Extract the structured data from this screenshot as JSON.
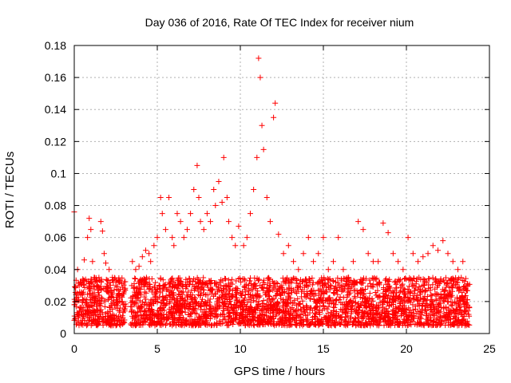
{
  "chart_data": {
    "type": "scatter",
    "title": "Day 036 of 2016, Rate Of TEC Index for receiver nium",
    "xlabel": "GPS time / hours",
    "ylabel": "ROTI / TECUs",
    "xlim": [
      0,
      25
    ],
    "ylim": [
      0,
      0.18
    ],
    "xticks": [
      0,
      5,
      10,
      15,
      20,
      25
    ],
    "yticks": [
      0,
      0.02,
      0.04,
      0.06,
      0.08,
      0.1,
      0.12,
      0.14,
      0.16,
      0.18
    ],
    "xtick_labels": [
      "0",
      "5",
      "10",
      "15",
      "20",
      "25"
    ],
    "ytick_labels": [
      "0",
      "0.02",
      "0.04",
      "0.06",
      "0.08",
      "0.1",
      "0.12",
      "0.14",
      "0.16",
      "0.18"
    ],
    "grid": true,
    "marker": "+",
    "color": "#ff0000",
    "series": [
      {
        "x": [
          0.0,
          0.05,
          0.2,
          0.3,
          0.5,
          0.6,
          0.8,
          0.9,
          1.0,
          1.1,
          1.2,
          1.4,
          1.6,
          1.7,
          1.8,
          1.9,
          2.1,
          2.3,
          2.5,
          2.7,
          2.9,
          3.0,
          3.5,
          3.7,
          3.9,
          4.1,
          4.3,
          4.5,
          4.6,
          4.8,
          5.0,
          5.2,
          5.3,
          5.5,
          5.7,
          5.9,
          6.0,
          6.2,
          6.4,
          6.6,
          6.8,
          7.0,
          7.2,
          7.4,
          7.5,
          7.6,
          7.8,
          8.0,
          8.2,
          8.4,
          8.5,
          8.7,
          8.9,
          9.0,
          9.2,
          9.3,
          9.5,
          9.7,
          9.9,
          10.2,
          10.4,
          10.6,
          10.8,
          11.0,
          11.1,
          11.2,
          11.3,
          11.4,
          11.6,
          11.8,
          12.0,
          12.1,
          12.3,
          12.6,
          12.9,
          13.2,
          13.5,
          13.8,
          14.1,
          14.4,
          14.7,
          15.0,
          15.3,
          15.6,
          15.9,
          16.2,
          16.5,
          16.8,
          17.1,
          17.4,
          17.7,
          18.0,
          18.3,
          18.6,
          18.9,
          19.2,
          19.5,
          19.8,
          20.1,
          20.4,
          20.7,
          21.0,
          21.3,
          21.6,
          21.9,
          22.2,
          22.5,
          22.8,
          23.1,
          23.4,
          23.7
        ],
        "y": [
          0.076,
          0.02,
          0.04,
          0.03,
          0.025,
          0.046,
          0.06,
          0.072,
          0.065,
          0.045,
          0.035,
          0.03,
          0.07,
          0.064,
          0.05,
          0.044,
          0.04,
          0.035,
          0.03,
          0.025,
          0.02,
          0.018,
          0.045,
          0.04,
          0.042,
          0.048,
          0.052,
          0.05,
          0.045,
          0.055,
          0.06,
          0.085,
          0.075,
          0.065,
          0.085,
          0.06,
          0.055,
          0.075,
          0.07,
          0.06,
          0.065,
          0.075,
          0.09,
          0.105,
          0.085,
          0.07,
          0.065,
          0.075,
          0.07,
          0.09,
          0.08,
          0.095,
          0.082,
          0.11,
          0.085,
          0.07,
          0.06,
          0.055,
          0.067,
          0.055,
          0.06,
          0.075,
          0.09,
          0.11,
          0.172,
          0.16,
          0.13,
          0.115,
          0.085,
          0.07,
          0.135,
          0.144,
          0.062,
          0.05,
          0.055,
          0.045,
          0.04,
          0.05,
          0.06,
          0.045,
          0.05,
          0.06,
          0.04,
          0.045,
          0.06,
          0.04,
          0.035,
          0.045,
          0.07,
          0.065,
          0.05,
          0.045,
          0.045,
          0.069,
          0.063,
          0.05,
          0.045,
          0.04,
          0.06,
          0.05,
          0.045,
          0.048,
          0.05,
          0.055,
          0.052,
          0.058,
          0.05,
          0.045,
          0.04,
          0.045,
          0.03
        ]
      }
    ],
    "dense_band": {
      "segments": [
        [
          0.0,
          3.1
        ],
        [
          3.4,
          23.8
        ]
      ],
      "y_min": 0.005,
      "y_max": 0.035
    }
  }
}
